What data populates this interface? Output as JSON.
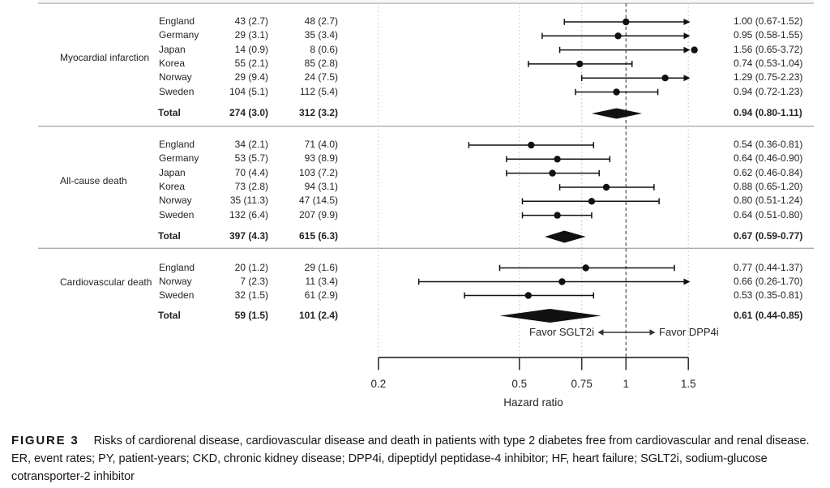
{
  "figure": {
    "caption_label": "FIGURE 3",
    "caption_text": "Risks of cardiorenal disease, cardiovascular disease and death in patients with type 2 diabetes free from cardiovascular and renal disease. ER, event rates; PY, patient-years; CKD, chronic kidney disease; DPP4i, dipeptidyl peptidase-4 inhibitor; HF, heart failure; SGLT2i, sodium-glucose cotransporter-2 inhibitor"
  },
  "colors": {
    "marks": "#111111",
    "text": "#242424",
    "divider": "#ababab",
    "grid": "#c2c2c2",
    "reference": "#4a4a4a",
    "axis": "#333333"
  },
  "chart_data": {
    "type": "forest",
    "xlabel": "Hazard ratio",
    "x_scale": "log",
    "x_ticks": [
      {
        "label": "0.2",
        "value": 0.2
      },
      {
        "label": "0.5",
        "value": 0.5
      },
      {
        "label": "0.75",
        "value": 0.75
      },
      {
        "label": "1",
        "value": 1
      },
      {
        "label": "1.5",
        "value": 1.5
      }
    ],
    "reference_line": 1,
    "favor_left": "Favor SGLT2i",
    "favor_right": "Favor DPP4i",
    "sections": [
      {
        "outcome": "Myocardial infarction",
        "rows": [
          {
            "label": "England",
            "g1": "43 (2.7)",
            "g2": "48 (2.7)",
            "hr": 1.0,
            "lo": 0.67,
            "hi": 1.52,
            "ci": "1.00 (0.67-1.52)"
          },
          {
            "label": "Germany",
            "g1": "29 (3.1)",
            "g2": "35 (3.4)",
            "hr": 0.95,
            "lo": 0.58,
            "hi": 1.55,
            "ci": "0.95 (0.58-1.55)"
          },
          {
            "label": "Japan",
            "g1": "14 (0.9)",
            "g2": "8 (0.6)",
            "hr": 1.56,
            "lo": 0.65,
            "hi": 3.72,
            "ci": "1.56 (0.65-3.72)"
          },
          {
            "label": "Korea",
            "g1": "55 (2.1)",
            "g2": "85 (2.8)",
            "hr": 0.74,
            "lo": 0.53,
            "hi": 1.04,
            "ci": "0.74 (0.53-1.04)"
          },
          {
            "label": "Norway",
            "g1": "29 (9.4)",
            "g2": "24 (7.5)",
            "hr": 1.29,
            "lo": 0.75,
            "hi": 2.23,
            "ci": "1.29 (0.75-2.23)"
          },
          {
            "label": "Sweden",
            "g1": "104 (5.1)",
            "g2": "112 (5.4)",
            "hr": 0.94,
            "lo": 0.72,
            "hi": 1.23,
            "ci": "0.94 (0.72-1.23)"
          }
        ],
        "total": {
          "label": "Total",
          "g1": "274 (3.0)",
          "g2": "312 (3.2)",
          "hr": 0.94,
          "lo": 0.8,
          "hi": 1.11,
          "ci": "0.94 (0.80-1.11)"
        }
      },
      {
        "outcome": "All-cause death",
        "rows": [
          {
            "label": "England",
            "g1": "34 (2.1)",
            "g2": "71 (4.0)",
            "hr": 0.54,
            "lo": 0.36,
            "hi": 0.81,
            "ci": "0.54 (0.36-0.81)"
          },
          {
            "label": "Germany",
            "g1": "53 (5.7)",
            "g2": "93 (8.9)",
            "hr": 0.64,
            "lo": 0.46,
            "hi": 0.9,
            "ci": "0.64 (0.46-0.90)"
          },
          {
            "label": "Japan",
            "g1": "70 (4.4)",
            "g2": "103 (7.2)",
            "hr": 0.62,
            "lo": 0.46,
            "hi": 0.84,
            "ci": "0.62 (0.46-0.84)"
          },
          {
            "label": "Korea",
            "g1": "73 (2.8)",
            "g2": "94 (3.1)",
            "hr": 0.88,
            "lo": 0.65,
            "hi": 1.2,
            "ci": "0.88 (0.65-1.20)"
          },
          {
            "label": "Norway",
            "g1": "35 (11.3)",
            "g2": "47 (14.5)",
            "hr": 0.8,
            "lo": 0.51,
            "hi": 1.24,
            "ci": "0.80 (0.51-1.24)"
          },
          {
            "label": "Sweden",
            "g1": "132 (6.4)",
            "g2": "207 (9.9)",
            "hr": 0.64,
            "lo": 0.51,
            "hi": 0.8,
            "ci": "0.64 (0.51-0.80)"
          }
        ],
        "total": {
          "label": "Total",
          "g1": "397 (4.3)",
          "g2": "615 (6.3)",
          "hr": 0.67,
          "lo": 0.59,
          "hi": 0.77,
          "ci": "0.67 (0.59-0.77)"
        }
      },
      {
        "outcome": "Cardiovascular death",
        "rows": [
          {
            "label": "England",
            "g1": "20 (1.2)",
            "g2": "29 (1.6)",
            "hr": 0.77,
            "lo": 0.44,
            "hi": 1.37,
            "ci": "0.77 (0.44-1.37)"
          },
          {
            "label": "Norway",
            "g1": "7 (2.3)",
            "g2": "11 (3.4)",
            "hr": 0.66,
            "lo": 0.26,
            "hi": 1.7,
            "ci": "0.66 (0.26-1.70)"
          },
          {
            "label": "Sweden",
            "g1": "32 (1.5)",
            "g2": "61 (2.9)",
            "hr": 0.53,
            "lo": 0.35,
            "hi": 0.81,
            "ci": "0.53 (0.35-0.81)"
          }
        ],
        "total": {
          "label": "Total",
          "g1": "59 (1.5)",
          "g2": "101 (2.4)",
          "hr": 0.61,
          "lo": 0.44,
          "hi": 0.85,
          "ci": "0.61 (0.44-0.85)"
        }
      }
    ]
  }
}
